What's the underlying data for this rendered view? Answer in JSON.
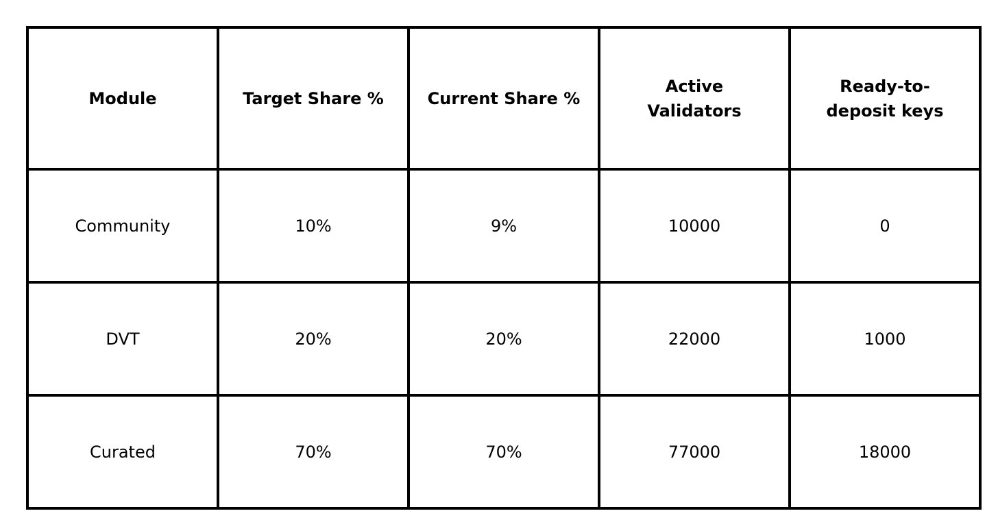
{
  "table": {
    "columns": [
      "Module",
      "Target Share %",
      "Current Share %",
      "Active Validators",
      "Ready-to-deposit keys"
    ],
    "rows": [
      [
        "Community",
        "10%",
        "9%",
        "10000",
        "0"
      ],
      [
        "DVT",
        "20%",
        "20%",
        "22000",
        "1000"
      ],
      [
        "Curated",
        "70%",
        "70%",
        "77000",
        "18000"
      ]
    ]
  }
}
